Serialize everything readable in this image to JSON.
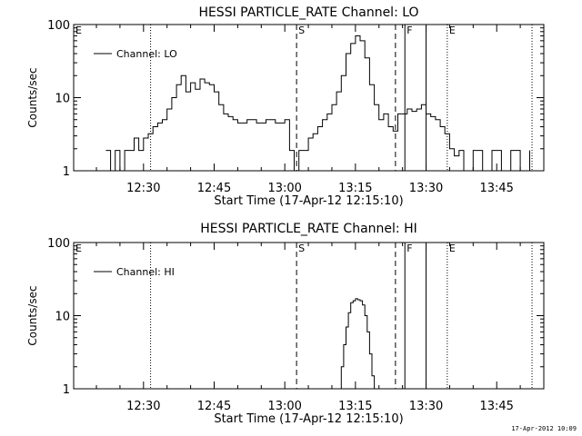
{
  "footer": {
    "timestamp": "17-Apr-2012 10:09"
  },
  "chart_data": [
    {
      "type": "line",
      "title": "HESSI PARTICLE_RATE Channel: LO",
      "xlabel": "Start Time (17-Apr-12 12:15:10)",
      "ylabel": "Counts/sec",
      "y_scale": "log",
      "xlim": [
        "12:15:10",
        "13:55"
      ],
      "ylim": [
        1,
        100
      ],
      "x_ticks": [
        "12:30",
        "12:45",
        "13:00",
        "13:15",
        "13:30",
        "13:45"
      ],
      "y_ticks": [
        "1",
        "10",
        "100"
      ],
      "legend": {
        "entries": [
          "Channel: LO"
        ],
        "placement": "top-left"
      },
      "markers": [
        {
          "label": "E",
          "time": "12:15:10",
          "style": "none"
        },
        {
          "label": "",
          "time": "12:31:30",
          "style": "dotted"
        },
        {
          "label": "S",
          "time": "13:02:30",
          "style": "dashed"
        },
        {
          "label": "",
          "time": "13:23:30",
          "style": "dashed"
        },
        {
          "label": "F",
          "time": "13:25:30",
          "style": "solid"
        },
        {
          "label": "",
          "time": "13:30:00",
          "style": "solid"
        },
        {
          "label": "E",
          "time": "13:34:30",
          "style": "dotted"
        },
        {
          "label": "",
          "time": "13:52:30",
          "style": "dotted"
        }
      ],
      "series": [
        {
          "name": "Channel: LO",
          "x": [
            "12:22:00",
            "12:23:00",
            "12:24:00",
            "12:25:00",
            "12:26:00",
            "12:27:00",
            "12:28:00",
            "12:29:00",
            "12:30:00",
            "12:31:00",
            "12:32:00",
            "12:33:00",
            "12:34:00",
            "12:35:00",
            "12:36:00",
            "12:37:00",
            "12:38:00",
            "12:39:00",
            "12:40:00",
            "12:41:00",
            "12:42:00",
            "12:43:00",
            "12:44:00",
            "12:45:00",
            "12:46:00",
            "12:47:00",
            "12:48:00",
            "12:49:00",
            "12:50:00",
            "12:52:00",
            "12:54:00",
            "12:56:00",
            "12:58:00",
            "13:00:00",
            "13:01:00",
            "13:02:00",
            "13:03:00",
            "13:04:00",
            "13:05:00",
            "13:06:00",
            "13:07:00",
            "13:08:00",
            "13:09:00",
            "13:10:00",
            "13:11:00",
            "13:12:00",
            "13:13:00",
            "13:14:00",
            "13:15:00",
            "13:16:00",
            "13:17:00",
            "13:18:00",
            "13:19:00",
            "13:20:00",
            "13:21:00",
            "13:22:00",
            "13:23:00",
            "13:24:00",
            "13:25:00",
            "13:26:00",
            "13:27:00",
            "13:28:00",
            "13:29:00",
            "13:30:00",
            "13:31:00",
            "13:32:00",
            "13:33:00",
            "13:34:00",
            "13:35:00",
            "13:36:00",
            "13:37:00",
            "13:38:00",
            "13:39:00",
            "13:40:00",
            "13:42:00",
            "13:44:00",
            "13:46:00",
            "13:48:00",
            "13:50:00",
            "13:52:00"
          ],
          "y": [
            1.9,
            1,
            1.9,
            1,
            1.9,
            1.9,
            2.8,
            1.9,
            2.8,
            3.2,
            4,
            4.5,
            5,
            7,
            10,
            15,
            20,
            12,
            16,
            13,
            18,
            16,
            15,
            12,
            8,
            6,
            5.5,
            5,
            4.5,
            5,
            4.5,
            5,
            4.5,
            5,
            1.9,
            1,
            1.9,
            1.9,
            2.8,
            3.2,
            4,
            5,
            6,
            8,
            12,
            20,
            40,
            55,
            70,
            60,
            35,
            15,
            8,
            5,
            6,
            4,
            3.5,
            6,
            6,
            7,
            6.5,
            7,
            8,
            6,
            5.5,
            5,
            4,
            3.2,
            2,
            1.6,
            1.9,
            1,
            1,
            1.9,
            1,
            1.9,
            1,
            1.9,
            1,
            1.9
          ]
        }
      ]
    },
    {
      "type": "line",
      "title": "HESSI PARTICLE_RATE Channel: HI",
      "xlabel": "Start Time (17-Apr-12 12:15:10)",
      "ylabel": "Counts/sec",
      "y_scale": "log",
      "xlim": [
        "12:15:10",
        "13:55"
      ],
      "ylim": [
        1,
        100
      ],
      "x_ticks": [
        "12:30",
        "12:45",
        "13:00",
        "13:15",
        "13:30",
        "13:45"
      ],
      "y_ticks": [
        "1",
        "10",
        "100"
      ],
      "legend": {
        "entries": [
          "Channel: HI"
        ],
        "placement": "top-left"
      },
      "markers": [
        {
          "label": "E",
          "time": "12:15:10",
          "style": "none"
        },
        {
          "label": "",
          "time": "12:31:30",
          "style": "dotted"
        },
        {
          "label": "S",
          "time": "13:02:30",
          "style": "dashed"
        },
        {
          "label": "",
          "time": "13:23:30",
          "style": "dashed"
        },
        {
          "label": "F",
          "time": "13:25:30",
          "style": "solid"
        },
        {
          "label": "",
          "time": "13:30:00",
          "style": "solid"
        },
        {
          "label": "E",
          "time": "13:34:30",
          "style": "dotted"
        },
        {
          "label": "",
          "time": "13:52:30",
          "style": "dotted"
        }
      ],
      "series": [
        {
          "name": "Channel: HI",
          "x": [
            "13:11:30",
            "13:12:00",
            "13:12:30",
            "13:13:00",
            "13:13:30",
            "13:14:00",
            "13:14:30",
            "13:15:00",
            "13:15:30",
            "13:16:00",
            "13:16:30",
            "13:17:00",
            "13:17:30",
            "13:18:00",
            "13:18:30",
            "13:19:00"
          ],
          "y": [
            1,
            2,
            4,
            7,
            11,
            15,
            16,
            17,
            16.5,
            16,
            14,
            10,
            6,
            3,
            1.5,
            1
          ]
        }
      ]
    }
  ]
}
